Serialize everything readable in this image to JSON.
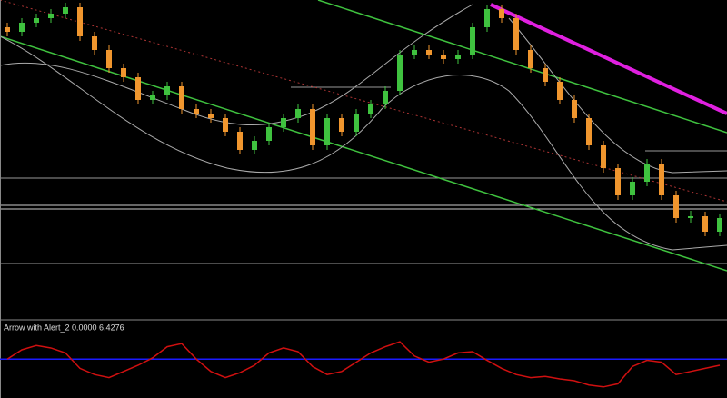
{
  "chart_data": [
    {
      "type": "candlestick",
      "open": [
        320,
        315,
        325,
        330,
        335,
        342,
        310,
        295,
        275,
        265,
        240,
        245,
        255,
        230,
        225,
        220,
        205,
        185,
        195,
        210,
        220,
        230,
        190,
        220,
        205,
        225,
        235,
        250,
        290,
        295,
        290,
        285,
        290,
        320,
        340,
        330,
        295,
        275,
        260,
        240,
        220,
        190,
        165,
        135,
        150,
        170,
        135,
        110,
        112,
        95
      ],
      "high": [
        325,
        330,
        335,
        340,
        347,
        347,
        315,
        300,
        280,
        270,
        250,
        260,
        260,
        235,
        230,
        225,
        210,
        200,
        215,
        225,
        235,
        235,
        225,
        225,
        230,
        240,
        255,
        295,
        300,
        300,
        295,
        295,
        325,
        345,
        345,
        335,
        300,
        280,
        265,
        245,
        225,
        195,
        170,
        155,
        175,
        175,
        140,
        118,
        117,
        115
      ],
      "low": [
        310,
        310,
        320,
        325,
        330,
        305,
        290,
        270,
        260,
        235,
        235,
        240,
        225,
        220,
        215,
        200,
        180,
        180,
        190,
        205,
        215,
        185,
        185,
        200,
        200,
        220,
        230,
        245,
        285,
        285,
        280,
        280,
        285,
        315,
        325,
        290,
        270,
        255,
        235,
        215,
        185,
        160,
        130,
        130,
        145,
        130,
        105,
        105,
        90,
        90
      ],
      "close": [
        315,
        325,
        330,
        335,
        342,
        310,
        295,
        275,
        265,
        240,
        245,
        255,
        230,
        225,
        220,
        205,
        185,
        195,
        210,
        220,
        230,
        190,
        220,
        205,
        225,
        235,
        250,
        290,
        295,
        290,
        285,
        290,
        320,
        340,
        330,
        295,
        275,
        260,
        240,
        220,
        190,
        165,
        135,
        150,
        170,
        135,
        110,
        112,
        95,
        110
      ],
      "up_color": "#3fc23f",
      "down_color": "#f0962e",
      "ylim": [
        0,
        350
      ]
    },
    {
      "type": "line",
      "title": "Arrow with Alert_2 0.0000 6.4276",
      "values": [
        60,
        75,
        82,
        78,
        70,
        45,
        35,
        30,
        40,
        50,
        62,
        80,
        85,
        60,
        40,
        30,
        38,
        50,
        70,
        78,
        72,
        48,
        35,
        40,
        55,
        70,
        80,
        88,
        65,
        55,
        60,
        70,
        72,
        58,
        45,
        35,
        30,
        32,
        28,
        25,
        18,
        15,
        20,
        48,
        58,
        55,
        35,
        40,
        45,
        50
      ],
      "color": "#d01010",
      "level": 60,
      "level_color": "#1a1aff",
      "ylim": [
        0,
        100
      ]
    }
  ]
}
